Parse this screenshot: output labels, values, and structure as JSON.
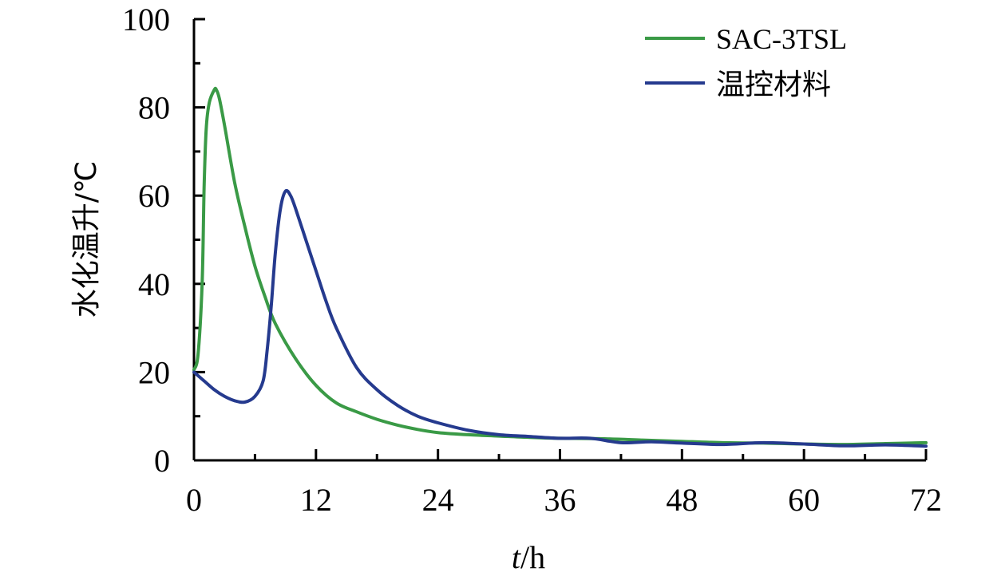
{
  "chart_data": {
    "type": "line",
    "xlabel_italic": "t",
    "xlabel_unit": "/h",
    "ylabel": "水化温升/℃",
    "xlim": [
      0,
      72
    ],
    "ylim": [
      0,
      100
    ],
    "xticks": [
      0,
      12,
      24,
      36,
      48,
      60,
      72
    ],
    "yticks": [
      0,
      20,
      40,
      60,
      80,
      100
    ],
    "grid": false,
    "legend_position": "top-right",
    "series": [
      {
        "name": "SAC-3TSL",
        "color": "#3a9a46",
        "x": [
          0,
          0.4,
          0.8,
          1.0,
          1.2,
          1.5,
          2.0,
          2.2,
          2.5,
          3,
          4,
          5,
          6,
          7,
          8,
          10,
          12,
          14,
          16,
          18,
          20,
          22,
          24,
          27,
          30,
          33,
          36,
          40,
          44,
          48,
          52,
          56,
          60,
          64,
          68,
          72
        ],
        "y": [
          20.5,
          24,
          40,
          62,
          75,
          81,
          84,
          84,
          82,
          76,
          63,
          53,
          44,
          37,
          31,
          23,
          17,
          13,
          11,
          9.3,
          8,
          7,
          6.3,
          5.8,
          5.5,
          5.2,
          5.0,
          4.9,
          4.6,
          4.3,
          4.0,
          3.9,
          3.7,
          3.6,
          3.8,
          4.0
        ]
      },
      {
        "name": "温控材料",
        "color": "#253a8e",
        "x": [
          0,
          1,
          2,
          3,
          4,
          5,
          6,
          6.8,
          7.2,
          7.6,
          8,
          8.5,
          9,
          9.5,
          10,
          11,
          12,
          13,
          14,
          16,
          18,
          20,
          22,
          24,
          27,
          30,
          33,
          36,
          39,
          42,
          45,
          48,
          52,
          56,
          60,
          64,
          68,
          72
        ],
        "y": [
          20,
          18,
          16,
          14.5,
          13.5,
          13.2,
          14.5,
          18,
          25,
          35,
          47,
          57,
          61,
          60,
          57,
          50,
          43,
          36,
          30,
          21,
          16,
          12.5,
          10,
          8.5,
          6.8,
          5.8,
          5.4,
          5.0,
          5.0,
          4.0,
          4.2,
          3.9,
          3.6,
          4.0,
          3.7,
          3.3,
          3.5,
          3.2
        ]
      }
    ]
  }
}
